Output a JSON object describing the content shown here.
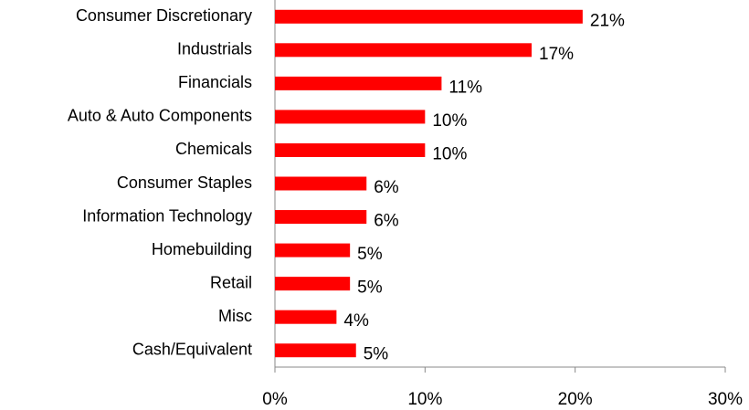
{
  "chart_data": {
    "type": "barh",
    "categories": [
      "Consumer Discretionary",
      "Industrials",
      "Financials",
      "Auto & Auto Components",
      "Chemicals",
      "Consumer Staples",
      "Information Technology",
      "Homebuilding",
      "Retail",
      "Misc",
      "Cash/Equivalent"
    ],
    "values": [
      20.5,
      17.1,
      11.1,
      10.0,
      10.0,
      6.1,
      6.1,
      5.0,
      5.0,
      4.1,
      5.4
    ],
    "value_labels": [
      "21%",
      "17%",
      "11%",
      "10%",
      "10%",
      "6%",
      "6%",
      "5%",
      "5%",
      "4%",
      "5%"
    ],
    "color": "#ff0000",
    "xlim": [
      0,
      30
    ],
    "xticks": [
      {
        "value": 0,
        "label": "0%"
      },
      {
        "value": 10,
        "label": "10%"
      },
      {
        "value": 20,
        "label": "20%"
      },
      {
        "value": 30,
        "label": "30%"
      }
    ],
    "grid": false
  }
}
